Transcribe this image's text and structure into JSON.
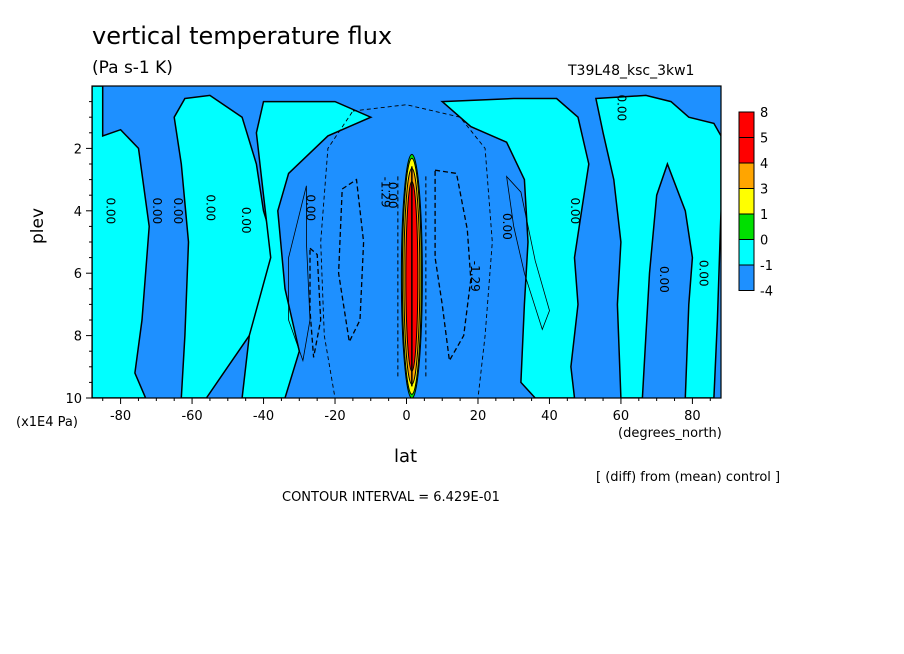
{
  "header": {
    "title": "vertical temperature flux",
    "units": "(Pa s-1 K)",
    "run_id": "T39L48_ksc_3kw1"
  },
  "footer": {
    "diff_note": "[ (diff) from (mean) control ]",
    "contour_interval": "CONTOUR INTERVAL = 6.429E-01"
  },
  "chart_data": {
    "type": "heatmap",
    "title": "vertical temperature flux",
    "subtitle": "(Pa s-1 K)",
    "xlabel": "lat",
    "xunits": "(degrees_north)",
    "ylabel": "plev",
    "yunits": "(x1E4 Pa)",
    "xlim": [
      -88,
      88
    ],
    "ylim": [
      10,
      0
    ],
    "x_ticks": [
      "-80",
      "-60",
      "-40",
      "-20",
      "0",
      "20",
      "40",
      "60",
      "80"
    ],
    "y_ticks": [
      "2",
      "4",
      "6",
      "8",
      "10"
    ],
    "contour_interval": 0.6429,
    "colorbar": {
      "labels": [
        "8",
        "5",
        "4",
        "3",
        "1",
        "0",
        "-1",
        "-4"
      ],
      "colors": [
        "#ff0000",
        "#ff0000",
        "#ffa500",
        "#ffff00",
        "#00e000",
        "#00ffff",
        "#1e90ff",
        "#1e90ff"
      ]
    },
    "fill_colors": {
      "positive_light": "#00ffff",
      "negative_light": "#1e90ff",
      "ring_green": "#00e000",
      "ring_yellow": "#ffff00",
      "ring_orange": "#ffa500",
      "peak_red": "#ff0000"
    },
    "contour_labels": [
      {
        "text": "0.00",
        "lat": -84,
        "plev": 4.0
      },
      {
        "text": "0.00",
        "lat": -71,
        "plev": 4.0
      },
      {
        "text": "0.00",
        "lat": -65,
        "plev": 4.0
      },
      {
        "text": "0.00",
        "lat": -56,
        "plev": 3.9
      },
      {
        "text": "0.00",
        "lat": -46,
        "plev": 4.3
      },
      {
        "text": "0.00",
        "lat": -28,
        "plev": 3.9
      },
      {
        "text": "-1.29",
        "lat": -7,
        "plev": 3.4
      },
      {
        "text": "0.00",
        "lat": -5,
        "plev": 3.5
      },
      {
        "text": "0.00",
        "lat": 27,
        "plev": 4.5
      },
      {
        "text": "-1.29",
        "lat": 18,
        "plev": 6.1
      },
      {
        "text": "0.00",
        "lat": 46,
        "plev": 4.0
      },
      {
        "text": "0.00",
        "lat": 59,
        "plev": 0.7
      },
      {
        "text": "0.00",
        "lat": 71,
        "plev": 6.2
      },
      {
        "text": "0.00",
        "lat": 82,
        "plev": 6.0
      }
    ]
  }
}
